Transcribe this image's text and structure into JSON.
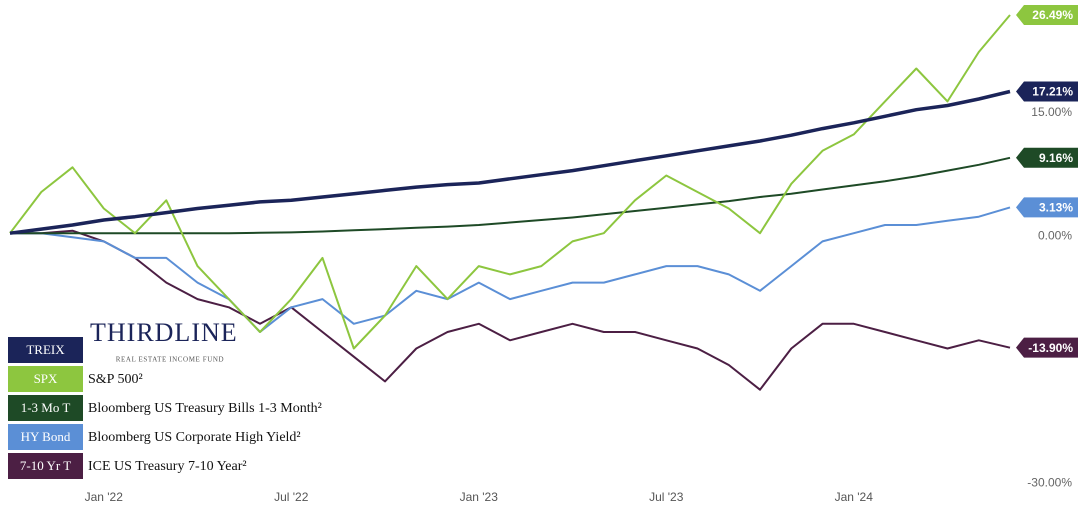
{
  "chart_data": {
    "type": "line",
    "categories": [
      null,
      null,
      null,
      "Jan '22",
      null,
      null,
      null,
      null,
      null,
      "Jul '22",
      null,
      null,
      null,
      null,
      null,
      "Jan '23",
      null,
      null,
      null,
      null,
      null,
      "Jul '23",
      null,
      null,
      null,
      null,
      null,
      "Jan '24",
      null,
      null,
      null,
      null,
      null
    ],
    "ylim": [
      -31,
      28
    ],
    "yticks": [
      {
        "value": 15,
        "label": "15.00%"
      },
      {
        "value": 0,
        "label": "0.00%"
      },
      {
        "value": -30,
        "label": "-30.00%"
      }
    ],
    "series": [
      {
        "name": "TREIX",
        "description": "THIRDLINE",
        "subtitle": "REAL ESTATE INCOME FUND",
        "color": "#1b2459",
        "end_label": "17.21%",
        "values": [
          0,
          0.5,
          1.0,
          1.6,
          2.0,
          2.5,
          3.0,
          3.4,
          3.8,
          4.0,
          4.4,
          4.8,
          5.2,
          5.6,
          5.9,
          6.1,
          6.6,
          7.1,
          7.6,
          8.2,
          8.8,
          9.4,
          10.0,
          10.6,
          11.2,
          11.9,
          12.7,
          13.4,
          14.2,
          15.0,
          15.5,
          16.3,
          17.21
        ]
      },
      {
        "name": "SPX",
        "description": "S&P 500²",
        "color": "#8dc63f",
        "end_label": "26.49%",
        "values": [
          0,
          5,
          8,
          3,
          0,
          4,
          -4,
          -8,
          -12,
          -8,
          -3,
          -14,
          -10,
          -4,
          -8,
          -4,
          -5,
          -4,
          -1,
          0,
          4,
          7,
          5,
          3,
          0,
          6,
          10,
          12,
          16,
          20,
          16,
          22,
          26.49
        ]
      },
      {
        "name": "1-3 Mo T",
        "description": "Bloomberg US Treasury Bills 1-3 Month²",
        "color": "#1e4a26",
        "end_label": "9.16%",
        "values": [
          0,
          0,
          0,
          0,
          0,
          0,
          0,
          0,
          0.05,
          0.1,
          0.2,
          0.35,
          0.5,
          0.65,
          0.8,
          1.0,
          1.3,
          1.6,
          1.9,
          2.3,
          2.7,
          3.1,
          3.5,
          3.9,
          4.4,
          4.8,
          5.3,
          5.8,
          6.3,
          6.9,
          7.6,
          8.3,
          9.16
        ]
      },
      {
        "name": "HY Bond",
        "description": "Bloomberg US Corporate High Yield²",
        "color": "#5b8fd6",
        "end_label": "3.13%",
        "values": [
          0,
          0,
          -0.5,
          -1,
          -3,
          -3,
          -6,
          -8,
          -12,
          -9,
          -8,
          -11,
          -10,
          -7,
          -8,
          -6,
          -8,
          -7,
          -6,
          -6,
          -5,
          -4,
          -4,
          -5,
          -7,
          -4,
          -1,
          0,
          1,
          1,
          1.5,
          2,
          3.13
        ]
      },
      {
        "name": "7-10 Yr T",
        "description": "ICE US Treasury 7-10 Year²",
        "color": "#4c1f44",
        "end_label": "-13.90%",
        "values": [
          0,
          0,
          0.3,
          -1,
          -3,
          -6,
          -8,
          -9,
          -11,
          -9,
          -12,
          -15,
          -18,
          -14,
          -12,
          -11,
          -13,
          -12,
          -11,
          -12,
          -12,
          -13,
          -14,
          -16,
          -19,
          -14,
          -11,
          -11,
          -12,
          -13,
          -14,
          -13,
          -13.9
        ]
      }
    ]
  }
}
